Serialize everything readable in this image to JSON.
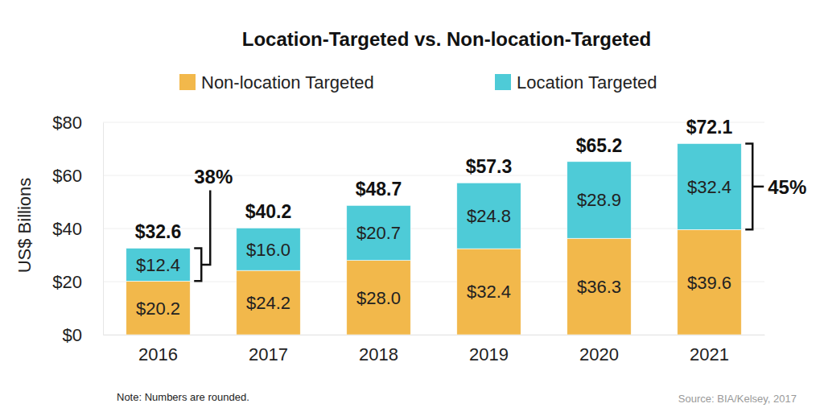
{
  "chart_data": {
    "type": "bar",
    "title": "Location-Targeted vs. Non-location-Targeted",
    "y_label": "US$ Billions",
    "note": "Note: Numbers are rounded.",
    "source": "Source: BIA/Kelsey, 2017",
    "categories": [
      "2016",
      "2017",
      "2018",
      "2019",
      "2020",
      "2021"
    ],
    "series": [
      {
        "name": "Non-location Targeted",
        "color": "#f2b84b",
        "values": [
          20.2,
          24.2,
          28.0,
          32.4,
          36.3,
          39.6
        ],
        "value_labels": [
          "$20.2",
          "$24.2",
          "$28.0",
          "$32.4",
          "$36.3",
          "$39.6"
        ]
      },
      {
        "name": "Location Targeted",
        "color": "#4ecbd7",
        "values": [
          12.4,
          16.0,
          20.7,
          24.8,
          28.9,
          32.4
        ],
        "value_labels": [
          "$12.4",
          "$16.0",
          "$20.7",
          "$24.8",
          "$28.9",
          "$32.4"
        ]
      }
    ],
    "totals": {
      "values": [
        32.6,
        40.2,
        48.7,
        57.3,
        65.2,
        72.1
      ],
      "value_labels": [
        "$32.6",
        "$40.2",
        "$48.7",
        "$57.3",
        "$65.2",
        "$72.1"
      ]
    },
    "annotations": [
      {
        "text": "38%",
        "category": "2016",
        "series": "Location Targeted"
      },
      {
        "text": "45%",
        "category": "2021",
        "series": "Location Targeted"
      }
    ],
    "ylim": [
      0,
      80
    ],
    "yticks": [
      {
        "value": 0,
        "label": "$0"
      },
      {
        "value": 20,
        "label": "$20"
      },
      {
        "value": 40,
        "label": "$40"
      },
      {
        "value": 60,
        "label": "$60"
      },
      {
        "value": 80,
        "label": "$80"
      }
    ],
    "stacked": true,
    "data_labels": true,
    "grid": true,
    "legend": "top"
  }
}
